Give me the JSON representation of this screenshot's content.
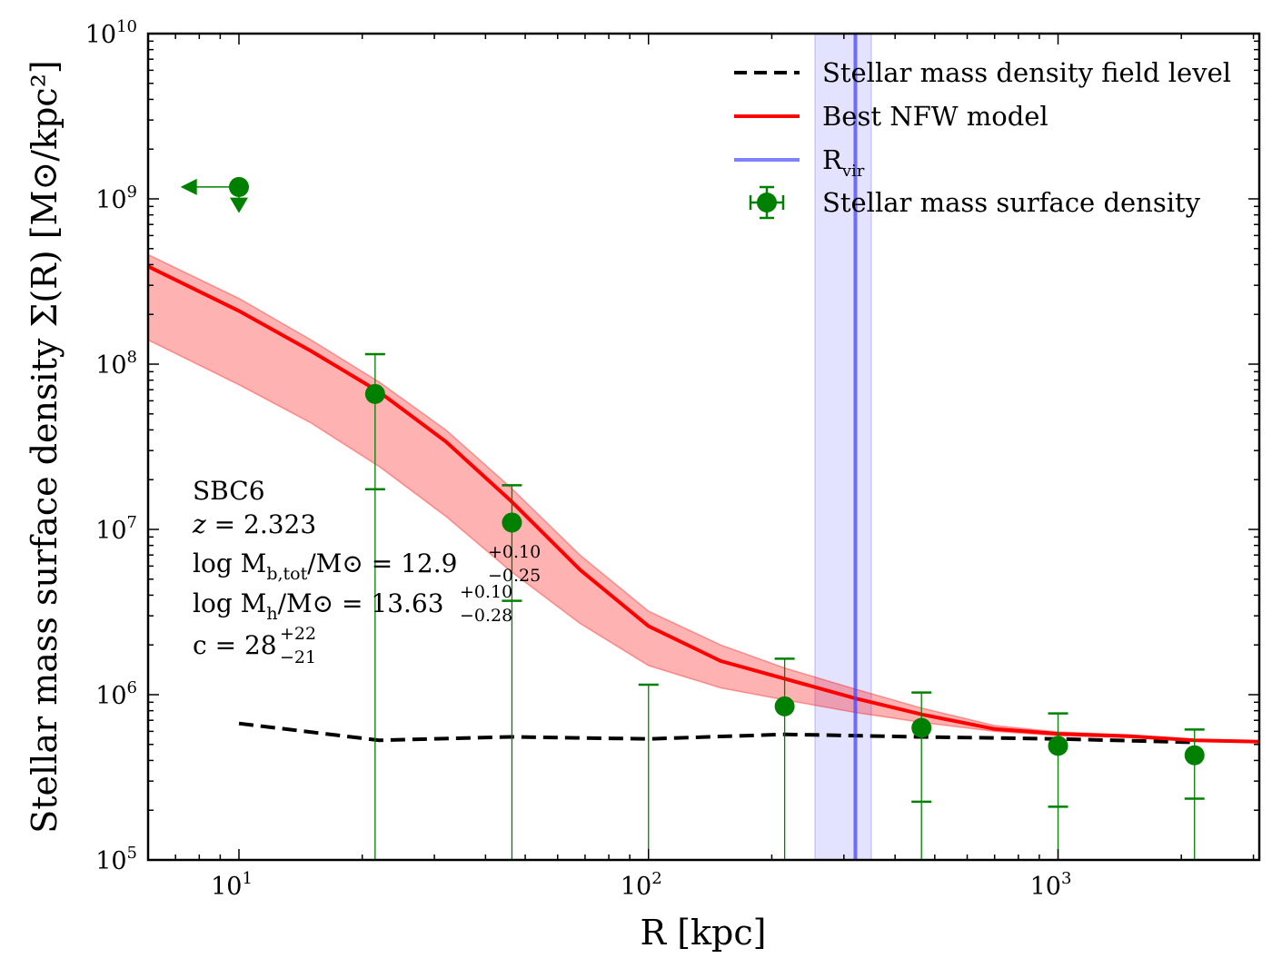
{
  "chart_data": {
    "type": "line",
    "xlabel": "R [kpc]",
    "ylabel": "Stellar mass surface density Σ(R) [M⊙/kpc²]",
    "x_scale": "log",
    "y_scale": "log",
    "xlim": [
      6,
      3100
    ],
    "ylim": [
      100000,
      10000000000
    ],
    "x_ticks": [
      {
        "value": 10,
        "base": "10",
        "exp": "1"
      },
      {
        "value": 100,
        "base": "10",
        "exp": "2"
      },
      {
        "value": 1000,
        "base": "10",
        "exp": "3"
      }
    ],
    "y_ticks": [
      {
        "value": 100000,
        "base": "10",
        "exp": "5"
      },
      {
        "value": 1000000,
        "base": "10",
        "exp": "6"
      },
      {
        "value": 10000000,
        "base": "10",
        "exp": "7"
      },
      {
        "value": 100000000,
        "base": "10",
        "exp": "8"
      },
      {
        "value": 1000000000,
        "base": "10",
        "exp": "9"
      },
      {
        "value": 10000000000,
        "base": "10",
        "exp": "10"
      }
    ],
    "legend": {
      "placement": "top-right",
      "entries": [
        {
          "label": "Stellar mass density field level",
          "style": "dashed",
          "color": "#000000"
        },
        {
          "label": "Best NFW model",
          "style": "solid",
          "color": "#ff0000"
        },
        {
          "label_main": "R",
          "label_sub": "vir",
          "style": "solid",
          "color": "#7f7fff"
        },
        {
          "label": "Stellar mass surface density",
          "style": "errorbar-marker",
          "color": "#008000"
        }
      ]
    },
    "series": [
      {
        "name": "Stellar mass density field level",
        "color": "#000000",
        "style": "dashed",
        "x": [
          10,
          22,
          46,
          100,
          215,
          464,
          1000,
          2154
        ],
        "y": [
          670000,
          530000,
          555000,
          540000,
          575000,
          555000,
          540000,
          515000
        ]
      },
      {
        "name": "Best NFW model",
        "color": "#ff0000",
        "style": "solid",
        "x": [
          6,
          10,
          15,
          22,
          32,
          46,
          68,
          100,
          150,
          215,
          320,
          464,
          700,
          1000,
          1500,
          2154,
          3100
        ],
        "y": [
          390000000,
          210000000,
          120000000,
          68000000,
          34000000,
          15000000,
          5700000,
          2600000,
          1600000,
          1250000,
          950000,
          760000,
          620000,
          580000,
          560000,
          530000,
          520000
        ],
        "band_low": [
          140000000,
          75000000,
          44000000,
          24000000,
          12000000,
          5600000,
          2700000,
          1500000,
          1100000,
          930000,
          780000,
          680000,
          600000,
          565000,
          550000,
          525000,
          515000
        ],
        "band_high": [
          460000000,
          250000000,
          140000000,
          78000000,
          40000000,
          18000000,
          7000000,
          3200000,
          2000000,
          1450000,
          1080000,
          830000,
          650000,
          595000,
          570000,
          535000,
          525000
        ]
      },
      {
        "name": "Rvir",
        "color": "#4444ff",
        "type": "vline",
        "x": 320,
        "band": [
          255,
          350
        ]
      },
      {
        "name": "Stellar mass surface density",
        "color": "#008000",
        "type": "errorbar",
        "points": [
          {
            "x": 21.5,
            "y": 66000000,
            "ylow": 17500000,
            "yhigh": 115000000
          },
          {
            "x": 46.4,
            "y": 11000000,
            "ylow": 3700000,
            "yhigh": 18500000
          },
          {
            "x": 100,
            "y": null,
            "ylow": 100000,
            "yhigh": 1150000
          },
          {
            "x": 215,
            "y": 850000,
            "ylow": 100000,
            "yhigh": 1650000
          },
          {
            "x": 464,
            "y": 630000,
            "ylow": 225000,
            "yhigh": 1030000
          },
          {
            "x": 1000,
            "y": 490000,
            "ylow": 210000,
            "yhigh": 770000
          },
          {
            "x": 2154,
            "y": 430000,
            "ylow": 235000,
            "yhigh": 615000
          }
        ],
        "limit_point": {
          "x": 10,
          "y": 1180000000,
          "arrow_left_to": 7.2,
          "arrow_down_to": 820000000
        }
      }
    ],
    "annotation": {
      "name": "SBC6",
      "z": "2.323",
      "mb_value": "12.9",
      "mb_plus": "+0.10",
      "mb_minus": "−0.25",
      "mh_value": "13.63",
      "mh_plus": "+0.10",
      "mh_minus": "−0.28",
      "c_value": "28",
      "c_plus": "+22",
      "c_minus": "−21"
    }
  }
}
